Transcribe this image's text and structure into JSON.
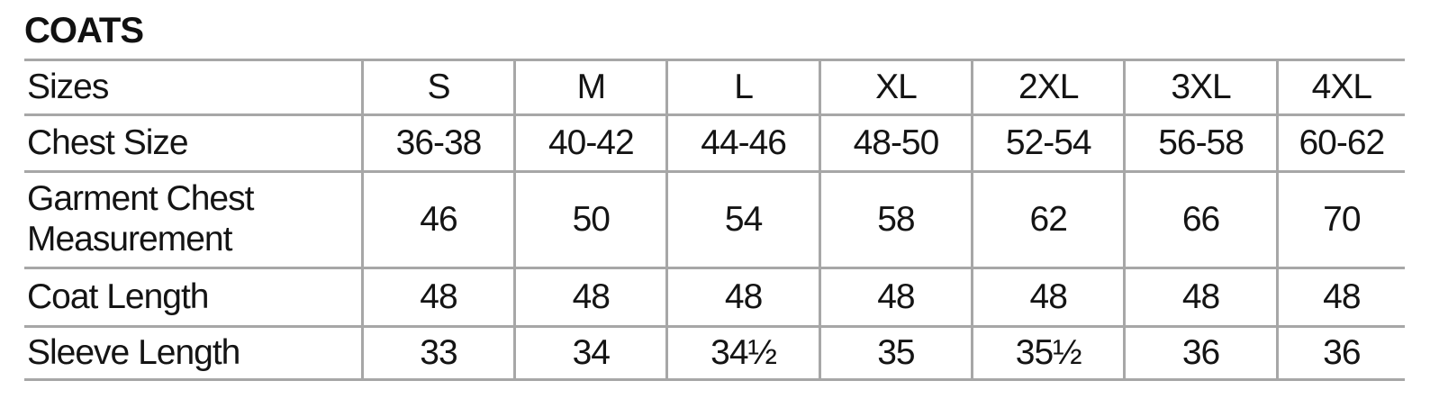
{
  "title": "COATS",
  "colors": {
    "border": "#a7a7a7",
    "text": "#141414",
    "background": "#ffffff"
  },
  "table": {
    "header": {
      "label": "Sizes",
      "columns": [
        "S",
        "M",
        "L",
        "XL",
        "2XL",
        "3XL",
        "4XL"
      ]
    },
    "rows": [
      {
        "label": "Chest Size",
        "values": [
          "36-38",
          "40-42",
          "44-46",
          "48-50",
          "52-54",
          "56-58",
          "60-62"
        ]
      },
      {
        "label": "Garment Chest Measurement",
        "values": [
          "46",
          "50",
          "54",
          "58",
          "62",
          "66",
          "70"
        ]
      },
      {
        "label": "Coat Length",
        "values": [
          "48",
          "48",
          "48",
          "48",
          "48",
          "48",
          "48"
        ]
      },
      {
        "label": "Sleeve Length",
        "values": [
          "33",
          "34",
          "34½",
          "35",
          "35½",
          "36",
          "36"
        ]
      }
    ]
  }
}
